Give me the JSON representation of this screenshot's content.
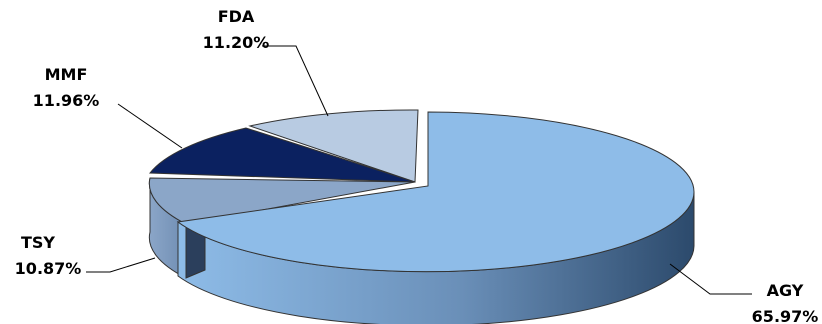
{
  "chart_data": {
    "type": "pie",
    "style": "3d-exploded",
    "labels": [
      "AGY",
      "FDA",
      "MMF",
      "TSY"
    ],
    "values": [
      65.97,
      11.2,
      11.96,
      10.87
    ],
    "value_labels": [
      "65.97%",
      "11.20%",
      "11.96%",
      "10.87%"
    ],
    "colors": [
      "#8ebce8",
      "#b8cbe2",
      "#0b2160",
      "#8ba6c8"
    ],
    "legend": "none",
    "data_labels": "outside with leader lines"
  }
}
